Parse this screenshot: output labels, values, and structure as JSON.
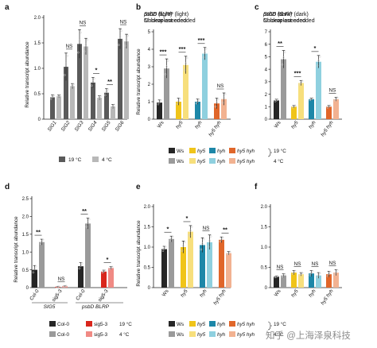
{
  "colors": {
    "wsDark": "#262626",
    "wsLight": "#9a9a9a",
    "hy5Dark": "#f0c419",
    "hy5Light": "#f7df7c",
    "hyhDark": "#1d87a8",
    "hyhLight": "#8fd0df",
    "dblDark": "#e0662a",
    "dblLight": "#f2b291",
    "col0Dark": "#262626",
    "col0Light": "#9a9a9a",
    "sigDark": "#d9261c",
    "sigLight": "#f08a84",
    "dot": "#e8e8e8"
  },
  "watermark": "知乎 @上海泽泉科技",
  "chart_data": [
    {
      "id": "a",
      "type": "bar",
      "panel_letter": "a",
      "title": "",
      "subtitle": "",
      "ylabel": "Relative transcript abundance",
      "ylim": [
        0,
        2.0
      ],
      "yticks": [
        "0",
        "0.5",
        "1.0",
        "1.5",
        "2.0"
      ],
      "categories": [
        "SIG1",
        "SIG2",
        "SIG3",
        "SIG4",
        "SIG5",
        "SIG6"
      ],
      "series": [
        {
          "name": "19 °C",
          "values": [
            0.43,
            1.03,
            1.48,
            0.72,
            0.52,
            1.58
          ],
          "errors": [
            0.05,
            0.27,
            0.28,
            0.1,
            0.08,
            0.2
          ]
        },
        {
          "name": "4 °C",
          "values": [
            0.45,
            0.65,
            1.43,
            0.42,
            0.25,
            1.53
          ],
          "errors": [
            0.03,
            0.05,
            0.16,
            0.04,
            0.04,
            0.14
          ]
        }
      ],
      "significance": [
        "",
        "NS",
        "NS",
        "*",
        "**",
        "NS"
      ],
      "legend": [
        "19 °C",
        "4 °C"
      ]
    },
    {
      "id": "b",
      "type": "bar",
      "panel_letter": "b",
      "title": "SIG5 (light)",
      "subtitle": "Nuclear-encoded",
      "ylabel": "Relative transcript abundance",
      "ylim": [
        0,
        5
      ],
      "yticks": [
        "0",
        "1",
        "2",
        "3",
        "4",
        "5"
      ],
      "categories": [
        "Ws",
        "hy5",
        "hyh",
        "hy5 hyh"
      ],
      "series": [
        {
          "name": "19 °C",
          "values": [
            0.95,
            1.0,
            1.0,
            0.9
          ],
          "errors": [
            0.15,
            0.2,
            0.15,
            0.3
          ]
        },
        {
          "name": "4 °C",
          "values": [
            2.9,
            3.1,
            3.75,
            1.15
          ],
          "errors": [
            0.55,
            0.5,
            0.35,
            0.35
          ]
        }
      ],
      "significance": [
        "***",
        "***",
        "***",
        "NS"
      ]
    },
    {
      "id": "c",
      "type": "bar",
      "panel_letter": "c",
      "title": "SIG5 (dark)",
      "subtitle": "Nuclear-encoded",
      "ylabel": "",
      "ylim": [
        0,
        7
      ],
      "yticks": [
        "0",
        "1",
        "2",
        "3",
        "4",
        "5",
        "6",
        "7"
      ],
      "categories": [
        "Ws",
        "hy5",
        "hyh",
        "hy5 hyh"
      ],
      "series": [
        {
          "name": "19 °C",
          "values": [
            1.5,
            1.0,
            1.6,
            1.0
          ],
          "errors": [
            0.1,
            0.1,
            0.1,
            0.1
          ]
        },
        {
          "name": "4 °C",
          "values": [
            4.8,
            2.9,
            4.6,
            1.6
          ],
          "errors": [
            0.7,
            0.2,
            0.5,
            0.15
          ]
        }
      ],
      "significance": [
        "**",
        "***",
        "*",
        "NS"
      ],
      "legend": {
        "row1": [
          "Ws",
          "hy5",
          "hyh",
          "hy5 hyh"
        ],
        "row2": [
          "Ws",
          "hy5",
          "hyh",
          "hy5 hyh"
        ],
        "temp1": "19 °C",
        "temp2": "4 °C"
      }
    },
    {
      "id": "d",
      "type": "bar",
      "panel_letter": "d",
      "title": "",
      "subtitle": "",
      "ylabel": "Relative transcript abundance",
      "ylim": [
        0,
        2.5
      ],
      "yticks": [
        "0",
        "0.5",
        "1.0",
        "1.5",
        "2.0",
        "2.5"
      ],
      "categories": [
        "Col-0",
        "sig5-3",
        "Col-0",
        "sig5-3"
      ],
      "groups": [
        "SIG5",
        "psbD BLRP"
      ],
      "series": [
        {
          "name": "19 °C",
          "values": [
            0.5,
            0.02,
            0.6,
            0.45
          ],
          "errors": [
            0.12,
            0.01,
            0.1,
            0.04
          ]
        },
        {
          "name": "4 °C",
          "values": [
            1.28,
            0.04,
            1.8,
            0.55
          ],
          "errors": [
            0.08,
            0.01,
            0.15,
            0.04
          ]
        }
      ],
      "significance": [
        "**",
        "NS",
        "**",
        "*"
      ],
      "legend": {
        "row1": [
          "Col-0",
          "sig5-3"
        ],
        "row2": [
          "Col-0",
          "sig5-3"
        ],
        "temp1": "19 °C",
        "temp2": "4 °C"
      }
    },
    {
      "id": "e",
      "type": "bar",
      "panel_letter": "e",
      "title": "psbD BLRP (light)",
      "subtitle": "Chloroplast-encoded",
      "ylabel": "Relative transcript abundance",
      "ylim": [
        0,
        2.0
      ],
      "yticks": [
        "0",
        "0.5",
        "1.0",
        "1.5",
        "2.0"
      ],
      "categories": [
        "Ws",
        "hy5",
        "hyh",
        "hy5 hyh"
      ],
      "series": [
        {
          "name": "19 °C",
          "values": [
            0.95,
            1.0,
            1.05,
            1.18
          ],
          "errors": [
            0.07,
            0.15,
            0.18,
            0.07
          ]
        },
        {
          "name": "4 °C",
          "values": [
            1.2,
            1.38,
            1.12,
            0.85
          ],
          "errors": [
            0.07,
            0.15,
            0.18,
            0.04
          ]
        }
      ],
      "significance": [
        "*",
        "*",
        "NS",
        "**"
      ],
      "legend": {
        "row1": [
          "Ws",
          "hy5",
          "hyh",
          "hy5 hyh"
        ],
        "row2": [
          "Ws",
          "hy5",
          "hyh",
          "hy5 hyh"
        ],
        "temp1": "19 °C",
        "temp2": "4 °C"
      }
    },
    {
      "id": "f",
      "type": "bar",
      "panel_letter": "f",
      "title": "psbD BLRP (dark)",
      "subtitle": "Chloroplast-encoded",
      "ylabel": "",
      "ylim": [
        0,
        2.0
      ],
      "yticks": [
        "0",
        "0.5",
        "1.0",
        "1.5",
        "2.0"
      ],
      "categories": [
        "Ws",
        "hy5",
        "hyh",
        "hy5 hyh"
      ],
      "series": [
        {
          "name": "19 °C",
          "values": [
            0.27,
            0.37,
            0.35,
            0.33
          ],
          "errors": [
            0.02,
            0.05,
            0.07,
            0.07
          ]
        },
        {
          "name": "4 °C",
          "values": [
            0.3,
            0.33,
            0.3,
            0.37
          ],
          "errors": [
            0.04,
            0.04,
            0.07,
            0.07
          ]
        }
      ],
      "significance": [
        "NS",
        "NS",
        "NS",
        "NS"
      ]
    }
  ]
}
